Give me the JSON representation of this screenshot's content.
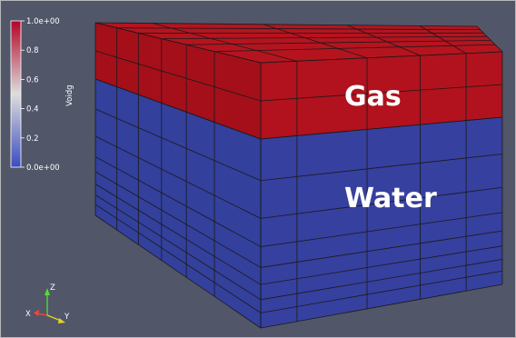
{
  "colorbar": {
    "title": "Voidg",
    "ticks": [
      {
        "value": 1.0,
        "label": "1.0e+00"
      },
      {
        "value": 0.8,
        "label": "0.8"
      },
      {
        "value": 0.6,
        "label": "0.6"
      },
      {
        "value": 0.4,
        "label": "0.4"
      },
      {
        "value": 0.2,
        "label": "0.2"
      },
      {
        "value": 0.0,
        "label": "0.0e+00"
      }
    ],
    "color_high": "#b40426",
    "color_mid": "#dddddd",
    "color_low": "#3b4cc0"
  },
  "labels": {
    "gas": "Gas",
    "water": "Water"
  },
  "orientation_axes": {
    "x": "X",
    "y": "Y",
    "z": "Z"
  },
  "colors": {
    "background": "#525669",
    "gas": "#b1121d",
    "water": "#36409e",
    "grid_lines": "#1a1a1a"
  }
}
